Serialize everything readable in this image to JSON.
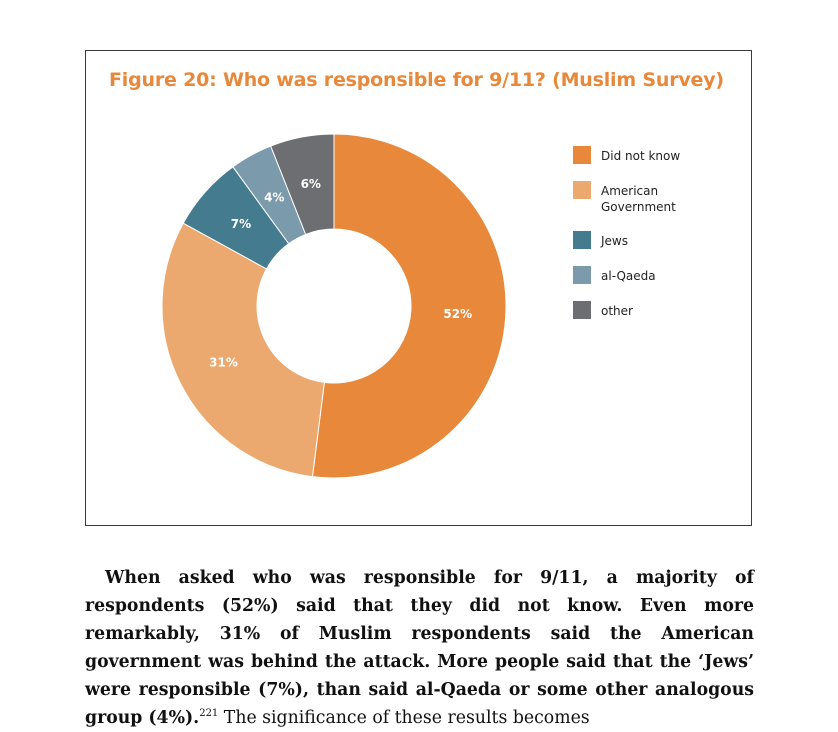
{
  "chart_data": {
    "type": "pie",
    "title": "Figure 20: Who was responsible for 9/11? (Muslim Survey)",
    "categories": [
      "Did not know",
      "American Government",
      "Jews",
      "al-Qaeda",
      "other"
    ],
    "values": [
      52,
      31,
      7,
      4,
      6
    ],
    "data_labels": [
      "52%",
      "31%",
      "7%",
      "4%",
      "6%"
    ],
    "colors": [
      "#e8883a",
      "#eba96f",
      "#457b8f",
      "#7b9aab",
      "#6d6e71"
    ],
    "legend_placement": "right",
    "donut": true
  },
  "legend": [
    {
      "label": "Did not know"
    },
    {
      "label": "American Government"
    },
    {
      "label": "Jews"
    },
    {
      "label": "al-Qaeda"
    },
    {
      "label": "other"
    }
  ],
  "body": {
    "bold_text": "When asked who was responsible for 9/11, a majority of respondents (52%) said that they did not know. Even more remarkably, 31% of Muslim respondents said the American government was behind the attack. More people said that the ‘Jews’ were responsible (7%), than said al-Qaeda or some other analogous group (4%).",
    "footnote": "221",
    "plain_text": " The significance of these results becomes"
  }
}
